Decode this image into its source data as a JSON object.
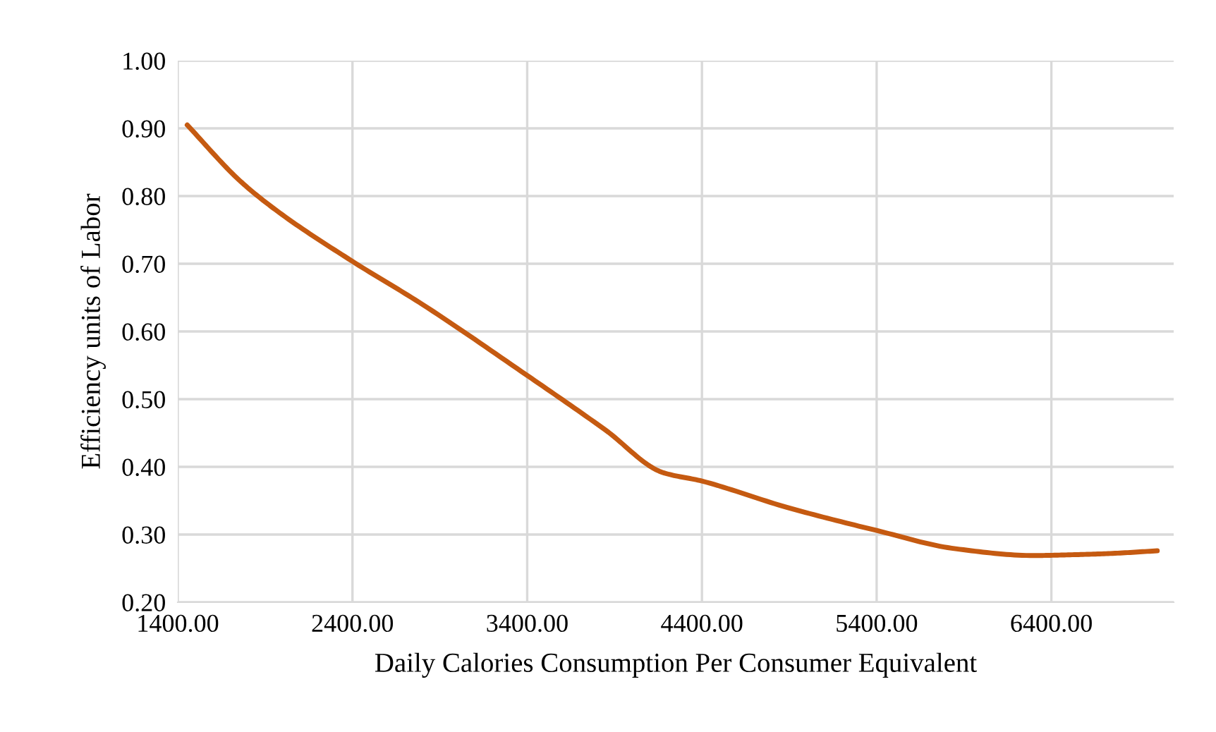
{
  "chart_data": {
    "type": "line",
    "xlabel": "Daily Calories Consumption Per Consumer Equivalent",
    "ylabel": "Efficiency units of Labor",
    "xlim": [
      1400,
      7100
    ],
    "xticks": [
      {
        "value": 1400,
        "label": "1400.00"
      },
      {
        "value": 2400,
        "label": "2400.00"
      },
      {
        "value": 3400,
        "label": "3400.00"
      },
      {
        "value": 4400,
        "label": "4400.00"
      },
      {
        "value": 5400,
        "label": "5400.00"
      },
      {
        "value": 6400,
        "label": "6400.00"
      }
    ],
    "ylim": [
      0.2,
      1.0
    ],
    "yticks": [
      {
        "value": 0.2,
        "label": "0.20"
      },
      {
        "value": 0.3,
        "label": "0.30"
      },
      {
        "value": 0.4,
        "label": "0.40"
      },
      {
        "value": 0.5,
        "label": "0.50"
      },
      {
        "value": 0.6,
        "label": "0.60"
      },
      {
        "value": 0.7,
        "label": "0.70"
      },
      {
        "value": 0.8,
        "label": "0.80"
      },
      {
        "value": 0.9,
        "label": "0.90"
      },
      {
        "value": 1.0,
        "label": "1.00"
      }
    ],
    "grid": true,
    "marker": "none",
    "line_style": "solid",
    "series": [
      {
        "color": "#c55a11",
        "x": [
          1454,
          1754,
          1995,
          2397,
          2800,
          3400,
          3850,
          4172,
          4400,
          4889,
          5400,
          5852,
          6300,
          6495,
          6737,
          7006
        ],
        "values": [
          0.905,
          0.823,
          0.773,
          0.704,
          0.64,
          0.535,
          0.454,
          0.392,
          0.379,
          0.34,
          0.306,
          0.279,
          0.269,
          0.27,
          0.272,
          0.276
        ]
      }
    ]
  }
}
